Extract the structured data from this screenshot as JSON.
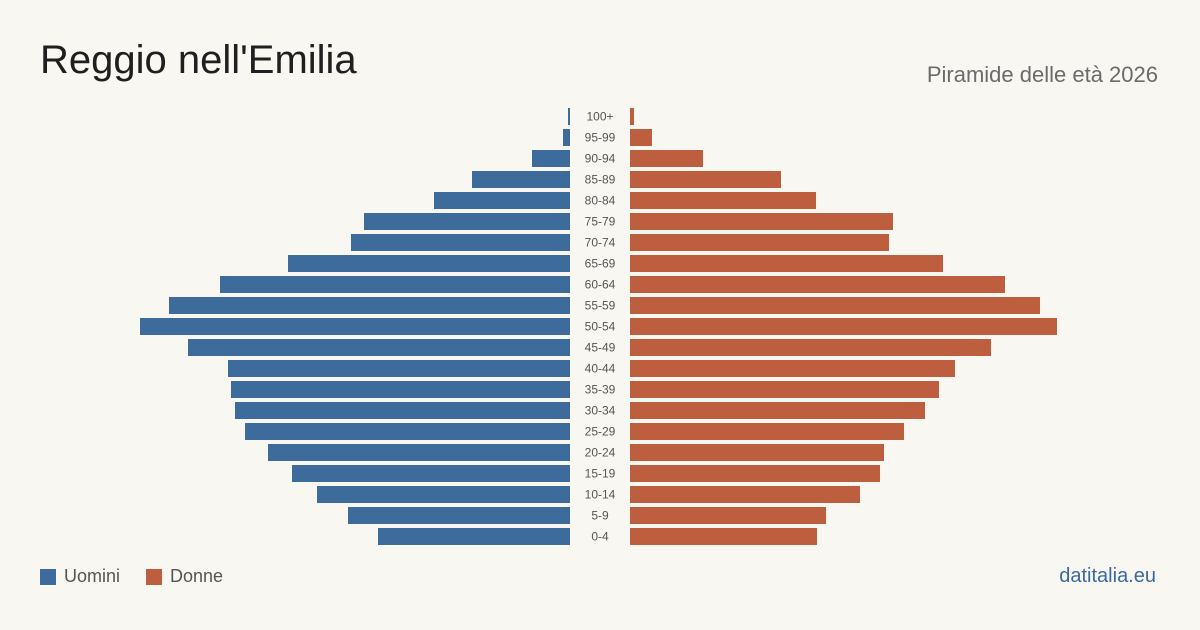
{
  "header": {
    "title": "Reggio nell'Emilia",
    "subtitle": "Piramide delle età 2026"
  },
  "legend": {
    "men_label": "Uomini",
    "women_label": "Donne"
  },
  "source": "datitalia.eu",
  "colors": {
    "men": "#3d6b9c",
    "women": "#bd5e3e",
    "background": "#f9f7f2",
    "age_label": "#555555"
  },
  "chart_data": {
    "type": "bar",
    "orientation": "horizontal-pyramid",
    "categories": [
      "100+",
      "95-99",
      "90-94",
      "85-89",
      "80-84",
      "75-79",
      "70-74",
      "65-69",
      "60-64",
      "55-59",
      "50-54",
      "45-49",
      "40-44",
      "35-39",
      "30-34",
      "25-29",
      "20-24",
      "15-19",
      "10-14",
      "5-9",
      "0-4"
    ],
    "series": [
      {
        "name": "Uomini",
        "values": [
          2,
          7,
          38,
          98,
          136,
          206,
          219,
          282,
          350,
          401,
          430,
          382,
          342,
          339,
          335,
          325,
          302,
          278,
          253,
          222,
          192
        ]
      },
      {
        "name": "Donne",
        "values": [
          4,
          22,
          73,
          151,
          186,
          263,
          259,
          313,
          375,
          410,
          427,
          361,
          325,
          309,
          295,
          274,
          254,
          250,
          230,
          196,
          187
        ]
      }
    ]
  }
}
